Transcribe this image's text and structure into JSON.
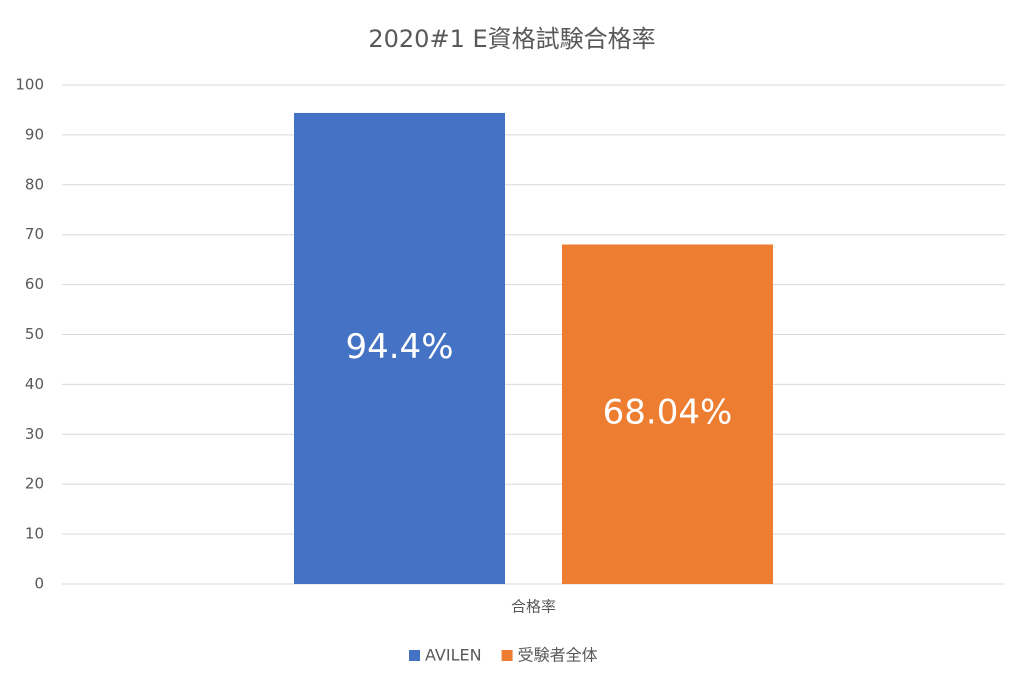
{
  "chart_data": {
    "type": "bar",
    "title": "2020#1 E資格試験合格率",
    "categories": [
      "合格率"
    ],
    "series": [
      {
        "name": "AVILEN",
        "color": "#4472c4",
        "values": [
          94.4
        ],
        "value_labels": [
          "94.4%"
        ]
      },
      {
        "name": "受験者全体",
        "color": "#ed7d31",
        "values": [
          68.04
        ],
        "value_labels": [
          "68.04%"
        ]
      }
    ],
    "ylim": [
      0,
      100
    ],
    "yticks": [
      0,
      10,
      20,
      30,
      40,
      50,
      60,
      70,
      80,
      90,
      100
    ],
    "grid": true,
    "legend": "bottom"
  }
}
